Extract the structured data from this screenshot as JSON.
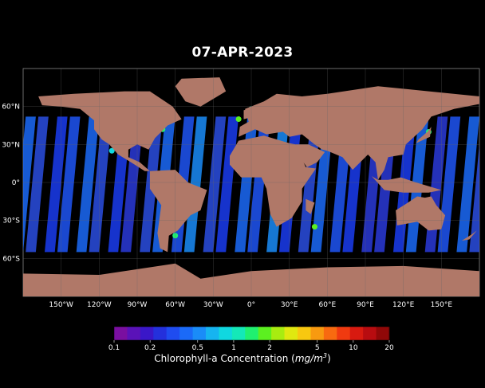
{
  "title": "07-APR-2023",
  "map": {
    "lat_labels": [
      "60°N",
      "30°N",
      "0°",
      "30°S",
      "60°S"
    ],
    "lat_values": [
      60,
      30,
      0,
      -30,
      -60
    ],
    "lon_labels": [
      "150°W",
      "120°W",
      "90°W",
      "60°W",
      "30°W",
      "0°",
      "30°E",
      "60°E",
      "90°E",
      "120°E",
      "150°E"
    ],
    "lon_values": [
      -150,
      -120,
      -90,
      -60,
      -30,
      0,
      30,
      60,
      90,
      120,
      150
    ],
    "extent": {
      "lon": [
        -180,
        180
      ],
      "lat": [
        -90,
        90
      ]
    },
    "land_color": "#b07868",
    "ocean_bg_color": "#000000",
    "gridline_color": "#666666"
  },
  "colorbar": {
    "label_prefix": "Chlorophyll-a Concentration (",
    "label_unit": "mg/m",
    "label_sup": "3",
    "label_suffix": ")",
    "tick_labels": [
      "0.1",
      "0.2",
      "0.5",
      "1",
      "2",
      "5",
      "10",
      "20"
    ],
    "tick_values": [
      0.1,
      0.2,
      0.5,
      1,
      2,
      5,
      10,
      20
    ],
    "range": [
      0.1,
      20
    ],
    "scale": "log",
    "colors": [
      "#7a0fa0",
      "#5a12b8",
      "#3a17c8",
      "#2430dc",
      "#1f4cf0",
      "#1b6af8",
      "#1a8cf8",
      "#16b4f0",
      "#10d8e0",
      "#14e8b8",
      "#20f070",
      "#5cf020",
      "#a8ec10",
      "#e0e810",
      "#f8c810",
      "#f89a10",
      "#f86a10",
      "#f03a10",
      "#d81a10",
      "#b80c10",
      "#900808"
    ]
  }
}
